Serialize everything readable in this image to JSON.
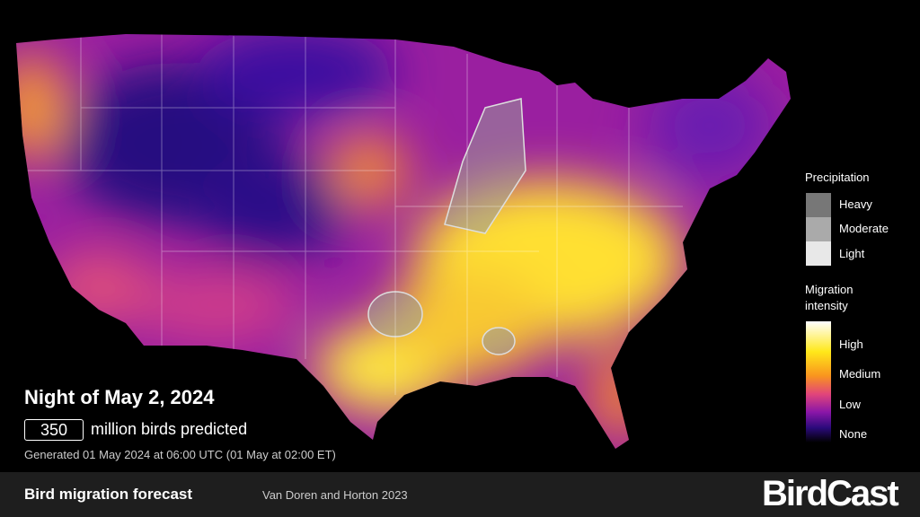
{
  "headline": {
    "title": "Night of May 2, 2024",
    "count": 350,
    "count_text": "million birds predicted",
    "generated": "Generated 01 May 2024 at 06:00 UTC (01 May at 02:00 ET)"
  },
  "legend": {
    "precipitation": {
      "title": "Precipitation",
      "items": [
        "Heavy",
        "Moderate",
        "Light"
      ]
    },
    "intensity": {
      "title": "Migration intensity",
      "items": [
        "High",
        "Medium",
        "Low",
        "None"
      ]
    }
  },
  "footer": {
    "title": "Bird migration forecast",
    "credit": "Van Doren and Horton 2023",
    "logo": "BirdCast"
  }
}
